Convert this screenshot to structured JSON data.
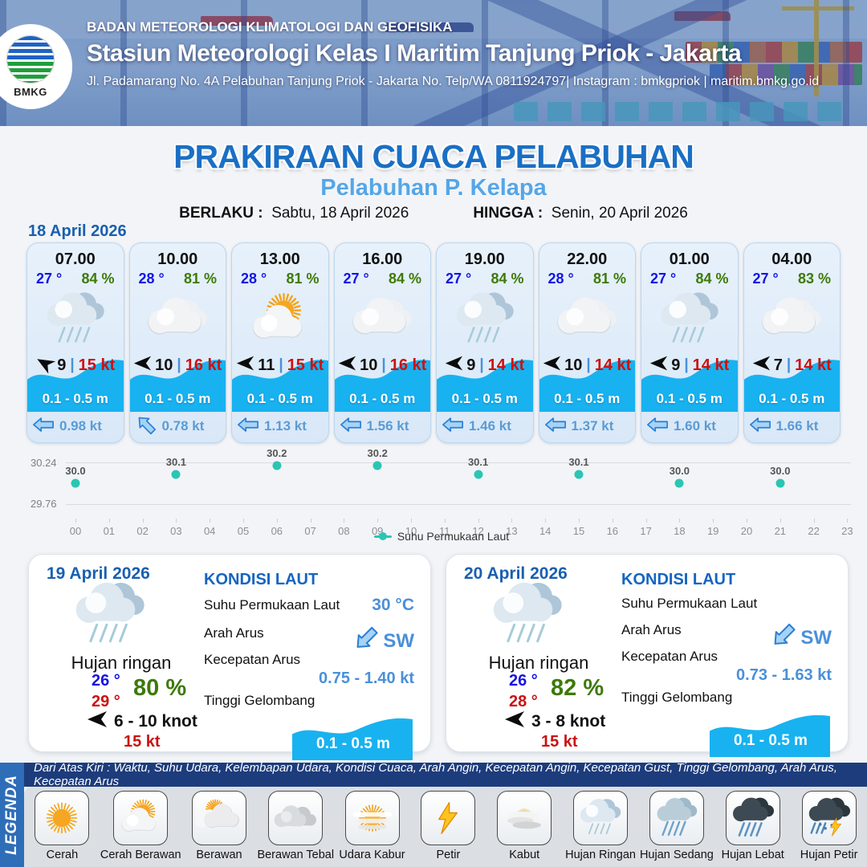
{
  "header": {
    "logo_label": "BMKG",
    "org": "BADAN METEOROLOGI KLIMATOLOGI DAN GEOFISIKA",
    "station": "Stasiun Meteorologi Kelas I Maritim Tanjung Priok - Jakarta",
    "address": "Jl. Padamarang No. 4A Pelabuhan Tanjung Priok - Jakarta No. Telp/WA 0811924797| Instagram : bmkgpriok | maritim.bmkg.go.id"
  },
  "title": {
    "main": "PRAKIRAAN CUACA PELABUHAN",
    "port": "Pelabuhan P. Kelapa",
    "valid_from_label": "BERLAKU :",
    "valid_from": "Sabtu, 18 April 2026",
    "valid_to_label": "HINGGA :",
    "valid_to": "Senin, 20 April 2026"
  },
  "forecast_date": "18 April 2026",
  "hourly_cards": [
    {
      "time": "07.00",
      "temp": "27 °",
      "humidity": "84 %",
      "icon": "hujan-ringan",
      "wind_speed": "9",
      "gust": "15 kt",
      "wind_rotation": 30,
      "wave": "0.1 - 0.5 m",
      "current_speed": "0.98 kt",
      "current_rotation": 0
    },
    {
      "time": "10.00",
      "temp": "28 °",
      "humidity": "81 %",
      "icon": "berawan",
      "wind_speed": "10",
      "gust": "16 kt",
      "wind_rotation": 0,
      "wave": "0.1 - 0.5 m",
      "current_speed": "0.78 kt",
      "current_rotation": 45
    },
    {
      "time": "13.00",
      "temp": "28 °",
      "humidity": "81 %",
      "icon": "cerah-berawan",
      "wind_speed": "11",
      "gust": "15 kt",
      "wind_rotation": 0,
      "wave": "0.1 - 0.5 m",
      "current_speed": "1.13 kt",
      "current_rotation": 0
    },
    {
      "time": "16.00",
      "temp": "27 °",
      "humidity": "84 %",
      "icon": "berawan",
      "wind_speed": "10",
      "gust": "16 kt",
      "wind_rotation": 0,
      "wave": "0.1 - 0.5 m",
      "current_speed": "1.56 kt",
      "current_rotation": 0
    },
    {
      "time": "19.00",
      "temp": "27 °",
      "humidity": "84 %",
      "icon": "hujan-ringan",
      "wind_speed": "9",
      "gust": "14 kt",
      "wind_rotation": 0,
      "wave": "0.1 - 0.5 m",
      "current_speed": "1.46 kt",
      "current_rotation": 0
    },
    {
      "time": "22.00",
      "temp": "28 °",
      "humidity": "81 %",
      "icon": "berawan",
      "wind_speed": "10",
      "gust": "14 kt",
      "wind_rotation": 0,
      "wave": "0.1 - 0.5 m",
      "current_speed": "1.37 kt",
      "current_rotation": 0
    },
    {
      "time": "01.00",
      "temp": "27 °",
      "humidity": "84 %",
      "icon": "hujan-ringan",
      "wind_speed": "9",
      "gust": "14 kt",
      "wind_rotation": 0,
      "wave": "0.1 - 0.5 m",
      "current_speed": "1.60 kt",
      "current_rotation": 0
    },
    {
      "time": "04.00",
      "temp": "27 °",
      "humidity": "83 %",
      "icon": "berawan",
      "wind_speed": "7",
      "gust": "14 kt",
      "wind_rotation": 0,
      "wave": "0.1 - 0.5 m",
      "current_speed": "1.66 kt",
      "current_rotation": 0
    }
  ],
  "chart_data": {
    "type": "scatter",
    "series": [
      {
        "name": "Suhu Permukaan Laut",
        "x": [
          0,
          3,
          6,
          9,
          12,
          15,
          18,
          21
        ],
        "values": [
          30.0,
          30.1,
          30.2,
          30.2,
          30.1,
          30.1,
          30.0,
          30.0
        ]
      }
    ],
    "x_ticks": [
      "00",
      "01",
      "02",
      "03",
      "04",
      "05",
      "06",
      "07",
      "08",
      "09",
      "10",
      "11",
      "12",
      "13",
      "14",
      "15",
      "16",
      "17",
      "18",
      "19",
      "20",
      "21",
      "22",
      "23"
    ],
    "ylim": [
      29.76,
      30.24
    ],
    "y_ticks": [
      "30.24",
      "29.76"
    ],
    "legend": "Suhu Permukaan Laut",
    "legend_position": "bottom",
    "grid": true,
    "point_color": "#2bc5b4",
    "xlabel": "",
    "ylabel": ""
  },
  "daily_cards": [
    {
      "date": "19 April 2026",
      "icon": "hujan-ringan",
      "condition": "Hujan ringan",
      "temp_min": "26 °",
      "temp_max": "29 °",
      "humidity": "80 %",
      "wind_range": "6 - 10 knot",
      "gust": "15 kt",
      "sea": {
        "heading": "KONDISI LAUT",
        "sst_label": "Suhu Permukaan Laut",
        "sst_value": "30 °C",
        "current_dir_label": "Arah Arus",
        "current_dir": "SW",
        "current_speed_label": "Kecepatan Arus",
        "current_speed": "0.75 - 1.40 kt",
        "wave_label": "Tinggi Gelombang",
        "wave": "0.1 - 0.5 m"
      }
    },
    {
      "date": "20 April 2026",
      "icon": "hujan-ringan",
      "condition": "Hujan ringan",
      "temp_min": "26 °",
      "temp_max": "28 °",
      "humidity": "82 %",
      "wind_range": "3 - 8 knot",
      "gust": "15 kt",
      "sea": {
        "heading": "KONDISI LAUT",
        "sst_label": "Suhu Permukaan Laut",
        "sst_value": "",
        "current_dir_label": "Arah Arus",
        "current_dir": "SW",
        "current_speed_label": "Kecepatan Arus",
        "current_speed": "0.73 - 1.63 kt",
        "wave_label": "Tinggi Gelombang",
        "wave": "0.1 - 0.5 m"
      }
    }
  ],
  "legend": {
    "side_label": "LEGENDA",
    "note": "Dari Atas Kiri : Waktu, Suhu Udara, Kelembapan Udara, Kondisi Cuaca, Arah Angin, Kecepatan Angin, Kecepatan Gust, Tinggi Gelombang, Arah Arus, Kecepatan Arus",
    "items": [
      {
        "label": "Cerah",
        "icon": "cerah"
      },
      {
        "label": "Cerah Berawan",
        "icon": "cerah-berawan"
      },
      {
        "label": "Berawan",
        "icon": "berawan-sun"
      },
      {
        "label": "Berawan Tebal",
        "icon": "berawan-tebal"
      },
      {
        "label": "Udara Kabur",
        "icon": "udara-kabur"
      },
      {
        "label": "Petir",
        "icon": "petir"
      },
      {
        "label": "Kabut",
        "icon": "kabut"
      },
      {
        "label": "Hujan Ringan",
        "icon": "hujan-ringan"
      },
      {
        "label": "Hujan Sedang",
        "icon": "hujan-sedang"
      },
      {
        "label": "Hujan Lebat",
        "icon": "hujan-lebat"
      },
      {
        "label": "Hujan Petir",
        "icon": "hujan-petir"
      }
    ]
  },
  "colors": {
    "title_blue": "#1a6fc4",
    "subtitle_blue": "#55a6e8",
    "temp_blue": "#1414e6",
    "humidity_green": "#3d7a08",
    "gust_red": "#cc1111",
    "wave_blue": "#18b2f0",
    "current_blue": "#5b9bd5",
    "sea_heading_blue": "#1565c0",
    "chart_point_teal": "#2bc5b4",
    "legend_bar_navy": "#1d3c7c",
    "legend_side_blue": "#2e6db8"
  }
}
